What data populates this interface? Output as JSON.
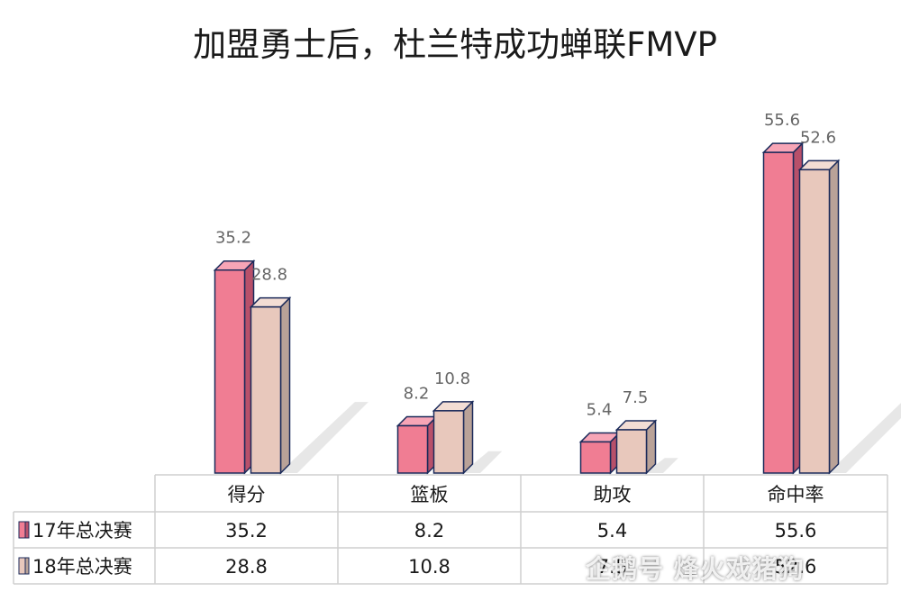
{
  "chart_data": {
    "type": "bar",
    "title": "加盟勇士后，杜兰特成功蝉联FMVP",
    "categories": [
      "得分",
      "篮板",
      "助攻",
      "命中率"
    ],
    "series": [
      {
        "name": "17年总决赛",
        "values": [
          35.2,
          8.2,
          5.4,
          55.6
        ],
        "labels": [
          "35.2",
          "8.2",
          "5.4",
          "55.6"
        ],
        "color": "#f07d93"
      },
      {
        "name": "18年总决赛",
        "values": [
          28.8,
          10.8,
          7.5,
          52.6
        ],
        "labels": [
          "28.8",
          "10.8",
          "7.5",
          "52.6"
        ],
        "color": "#e8c8bc"
      }
    ],
    "ylim": [
      0,
      58
    ],
    "grid": false,
    "legend": "data-table"
  },
  "watermark": "企鹅号 烽火戏猪狗"
}
